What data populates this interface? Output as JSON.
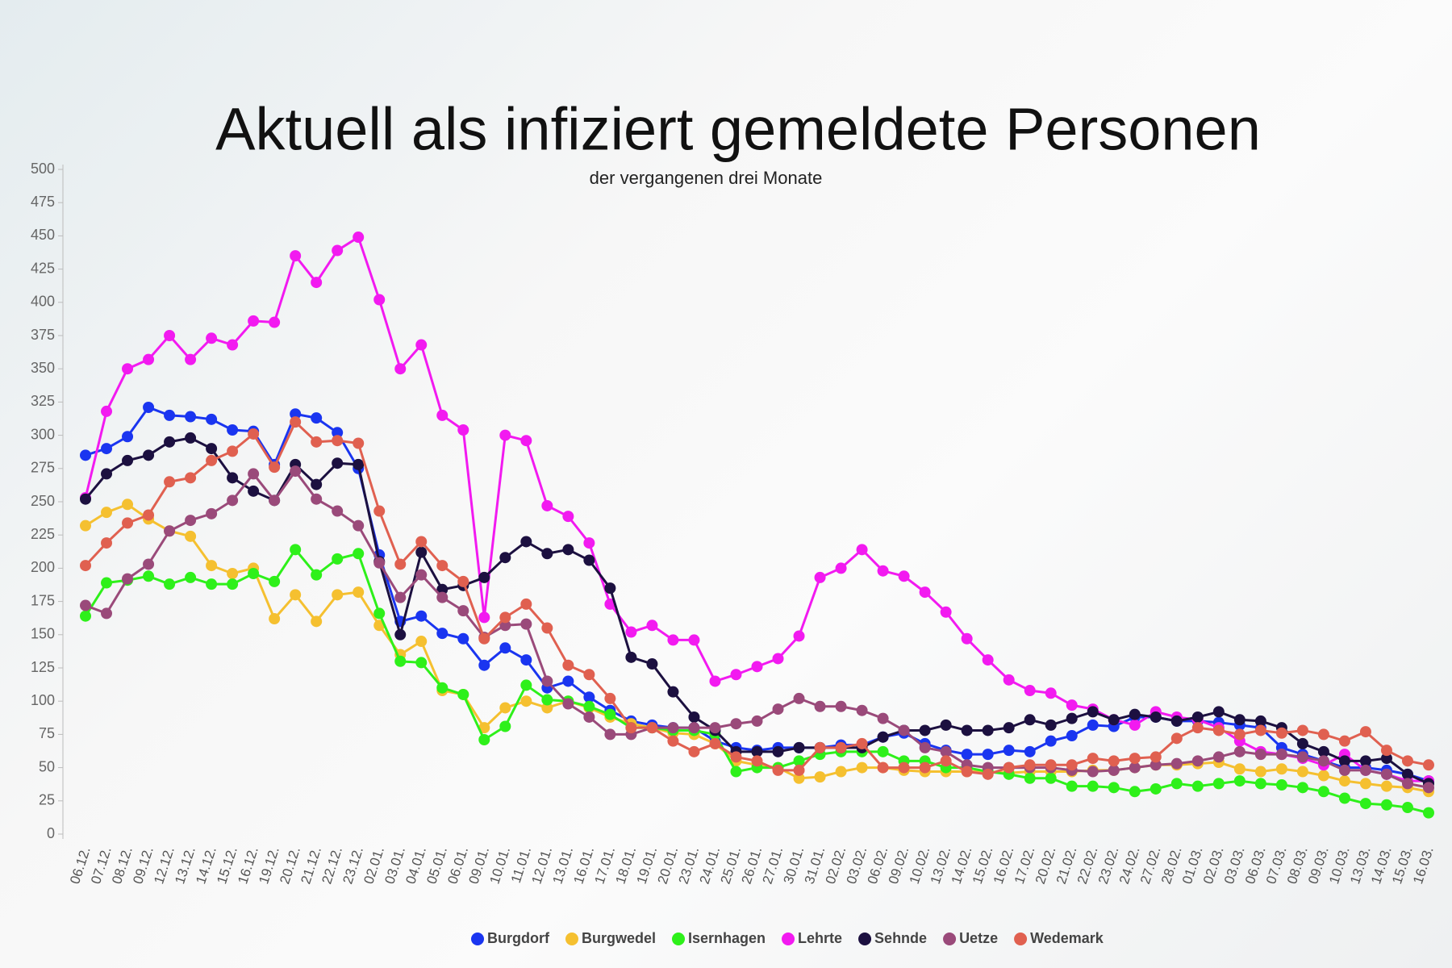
{
  "chart_data": {
    "type": "line",
    "title": "Aktuell als infiziert gemeldete Personen",
    "subtitle": "der vergangenen drei Monate",
    "categories": [
      "06.12.",
      "07.12.",
      "08.12.",
      "09.12.",
      "12.12.",
      "13.12.",
      "14.12.",
      "15.12.",
      "16.12.",
      "19.12.",
      "20.12.",
      "21.12.",
      "22.12.",
      "23.12.",
      "02.01.",
      "03.01.",
      "04.01.",
      "05.01.",
      "06.01.",
      "09.01.",
      "10.01.",
      "11.01.",
      "12.01.",
      "13.01.",
      "16.01.",
      "17.01.",
      "18.01.",
      "19.01.",
      "20.01.",
      "23.01.",
      "24.01.",
      "25.01.",
      "26.01.",
      "27.01.",
      "30.01.",
      "31.01.",
      "02.02.",
      "03.02.",
      "06.02.",
      "09.02.",
      "10.02.",
      "13.02.",
      "14.02.",
      "15.02.",
      "16.02.",
      "17.02.",
      "20.02.",
      "21.02.",
      "22.02.",
      "23.02.",
      "24.02.",
      "27.02.",
      "28.02.",
      "01.03.",
      "02.03.",
      "03.03.",
      "06.03.",
      "07.03.",
      "08.03.",
      "09.03.",
      "10.03.",
      "13.03.",
      "14.03.",
      "15.03.",
      "16.03."
    ],
    "series": [
      {
        "name": "Burgdorf",
        "color": "#1a35f0",
        "values": [
          285,
          290,
          299,
          321,
          315,
          314,
          312,
          304,
          303,
          278,
          316,
          313,
          302,
          275,
          210,
          160,
          164,
          151,
          147,
          127,
          140,
          131,
          110,
          115,
          103,
          93,
          85,
          82,
          80,
          80,
          70,
          65,
          63,
          65,
          65,
          65,
          67,
          67,
          73,
          76,
          68,
          63,
          60,
          60,
          63,
          62,
          70,
          74,
          82,
          81,
          88,
          88,
          85,
          85,
          84,
          82,
          80,
          65,
          60,
          55,
          50,
          50,
          48,
          45,
          40
        ]
      },
      {
        "name": "Burgwedel",
        "color": "#f5c030",
        "values": [
          232,
          242,
          248,
          237,
          228,
          224,
          202,
          196,
          200,
          162,
          180,
          160,
          180,
          182,
          157,
          135,
          145,
          108,
          105,
          80,
          95,
          100,
          95,
          100,
          95,
          88,
          83,
          80,
          76,
          75,
          68,
          55,
          52,
          50,
          42,
          43,
          47,
          50,
          50,
          48,
          47,
          47,
          47,
          47,
          46,
          47,
          47,
          47,
          48,
          48,
          50,
          52,
          52,
          53,
          54,
          49,
          47,
          49,
          47,
          44,
          40,
          38,
          36,
          35,
          32
        ]
      },
      {
        "name": "Isernhagen",
        "color": "#2ef01a",
        "values": [
          164,
          189,
          191,
          194,
          188,
          193,
          188,
          188,
          196,
          190,
          214,
          195,
          207,
          211,
          166,
          130,
          129,
          110,
          105,
          71,
          81,
          112,
          101,
          100,
          96,
          90,
          80,
          80,
          78,
          78,
          75,
          47,
          50,
          50,
          55,
          60,
          62,
          62,
          62,
          55,
          55,
          50,
          50,
          47,
          45,
          42,
          42,
          36,
          36,
          35,
          32,
          34,
          38,
          36,
          38,
          40,
          38,
          37,
          35,
          32,
          27,
          23,
          22,
          20,
          16
        ]
      },
      {
        "name": "Lehrte",
        "color": "#f21af0",
        "values": [
          253,
          318,
          350,
          357,
          375,
          357,
          373,
          368,
          386,
          385,
          435,
          415,
          439,
          449,
          402,
          350,
          368,
          315,
          304,
          163,
          300,
          296,
          247,
          239,
          219,
          173,
          152,
          157,
          146,
          146,
          115,
          120,
          126,
          132,
          149,
          193,
          200,
          214,
          198,
          194,
          182,
          167,
          147,
          131,
          116,
          108,
          106,
          97,
          94,
          86,
          82,
          92,
          88,
          86,
          80,
          70,
          62,
          60,
          57,
          52,
          60,
          48,
          45,
          40,
          40
        ]
      },
      {
        "name": "Sehnde",
        "color": "#1c1040",
        "values": [
          252,
          271,
          281,
          285,
          295,
          298,
          290,
          268,
          258,
          251,
          278,
          263,
          279,
          278,
          205,
          150,
          212,
          184,
          187,
          193,
          208,
          220,
          211,
          214,
          206,
          185,
          133,
          128,
          107,
          88,
          78,
          62,
          62,
          62,
          65,
          65,
          65,
          65,
          73,
          78,
          78,
          82,
          78,
          78,
          80,
          86,
          82,
          87,
          92,
          86,
          90,
          88,
          85,
          88,
          92,
          86,
          85,
          80,
          68,
          62,
          55,
          55,
          57,
          45,
          38
        ]
      },
      {
        "name": "Uetze",
        "color": "#9a4a7a",
        "values": [
          172,
          166,
          192,
          203,
          228,
          236,
          241,
          251,
          271,
          251,
          273,
          252,
          243,
          232,
          204,
          178,
          195,
          178,
          168,
          148,
          157,
          158,
          115,
          98,
          88,
          75,
          75,
          80,
          80,
          80,
          80,
          83,
          85,
          94,
          102,
          96,
          96,
          93,
          87,
          78,
          65,
          62,
          52,
          50,
          50,
          50,
          50,
          48,
          47,
          48,
          50,
          52,
          53,
          55,
          58,
          62,
          60,
          60,
          58,
          55,
          48,
          48,
          45,
          38,
          35
        ]
      },
      {
        "name": "Wedemark",
        "color": "#e06050",
        "values": [
          202,
          219,
          234,
          240,
          265,
          268,
          281,
          288,
          301,
          276,
          310,
          295,
          296,
          294,
          243,
          203,
          220,
          202,
          190,
          147,
          163,
          173,
          155,
          127,
          120,
          102,
          80,
          80,
          70,
          62,
          68,
          58,
          55,
          48,
          48,
          65,
          65,
          68,
          50,
          50,
          50,
          55,
          47,
          45,
          50,
          52,
          52,
          52,
          57,
          55,
          57,
          58,
          72,
          80,
          78,
          75,
          78,
          76,
          78,
          75,
          70,
          77,
          63,
          55,
          52
        ]
      }
    ],
    "ylim": [
      0,
      500
    ],
    "yticks": [
      0,
      25,
      50,
      75,
      100,
      125,
      150,
      175,
      200,
      225,
      250,
      275,
      300,
      325,
      350,
      375,
      400,
      425,
      450,
      475,
      500
    ]
  }
}
